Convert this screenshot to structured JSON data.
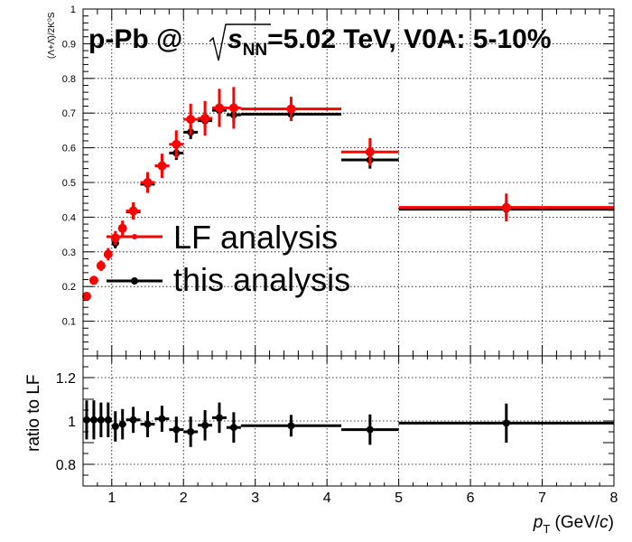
{
  "chart_data": [
    {
      "type": "scatter",
      "title_parts": [
        "p-Pb @",
        "s",
        "NN",
        "=5.02 TeV, V0A: 5-10%"
      ],
      "ylabel": "(Λ+Λ̄)/2K⁰S",
      "xlim": [
        0.6,
        8
      ],
      "ylim": [
        0,
        1
      ],
      "yticks": [
        "0.1",
        "0.2",
        "0.3",
        "0.4",
        "0.5",
        "0.6",
        "0.7",
        "0.8",
        "0.9",
        "1"
      ],
      "grid": true,
      "legend_position": "center-left",
      "series": [
        {
          "name": "LF analysis",
          "color": "#ff0000",
          "points": [
            {
              "x": 0.65,
              "xerr": 0.05,
              "y": 0.172,
              "yerr": 0.01
            },
            {
              "x": 0.75,
              "xerr": 0.05,
              "y": 0.218,
              "yerr": 0.012
            },
            {
              "x": 0.85,
              "xerr": 0.05,
              "y": 0.26,
              "yerr": 0.015
            },
            {
              "x": 0.95,
              "xerr": 0.05,
              "y": 0.293,
              "yerr": 0.018
            },
            {
              "x": 1.05,
              "xerr": 0.05,
              "y": 0.34,
              "yerr": 0.02
            },
            {
              "x": 1.15,
              "xerr": 0.05,
              "y": 0.368,
              "yerr": 0.022
            },
            {
              "x": 1.3,
              "xerr": 0.1,
              "y": 0.418,
              "yerr": 0.025
            },
            {
              "x": 1.5,
              "xerr": 0.1,
              "y": 0.5,
              "yerr": 0.03
            },
            {
              "x": 1.7,
              "xerr": 0.1,
              "y": 0.548,
              "yerr": 0.035
            },
            {
              "x": 1.9,
              "xerr": 0.1,
              "y": 0.61,
              "yerr": 0.04
            },
            {
              "x": 2.1,
              "xerr": 0.1,
              "y": 0.682,
              "yerr": 0.045
            },
            {
              "x": 2.3,
              "xerr": 0.1,
              "y": 0.685,
              "yerr": 0.05
            },
            {
              "x": 2.5,
              "xerr": 0.1,
              "y": 0.715,
              "yerr": 0.055
            },
            {
              "x": 2.7,
              "xerr": 0.1,
              "y": 0.715,
              "yerr": 0.06
            },
            {
              "x": 3.5,
              "xerr": 0.7,
              "y": 0.712,
              "yerr": 0.035
            },
            {
              "x": 4.6,
              "xerr": 0.4,
              "y": 0.588,
              "yerr": 0.04
            },
            {
              "x": 6.5,
              "xerr": 1.5,
              "y": 0.428,
              "yerr": 0.04
            }
          ]
        },
        {
          "name": "this analysis",
          "color": "#000000",
          "points": [
            {
              "x": 1.05,
              "xerr": 0.05,
              "y": 0.325,
              "yerr": 0.015
            },
            {
              "x": 1.3,
              "xerr": 0.1,
              "y": 0.415,
              "yerr": 0.02
            },
            {
              "x": 1.5,
              "xerr": 0.1,
              "y": 0.495,
              "yerr": 0.02
            },
            {
              "x": 1.7,
              "xerr": 0.1,
              "y": 0.548,
              "yerr": 0.02
            },
            {
              "x": 1.9,
              "xerr": 0.1,
              "y": 0.585,
              "yerr": 0.02
            },
            {
              "x": 2.1,
              "xerr": 0.1,
              "y": 0.645,
              "yerr": 0.02
            },
            {
              "x": 2.3,
              "xerr": 0.1,
              "y": 0.678,
              "yerr": 0.02
            },
            {
              "x": 2.5,
              "xerr": 0.1,
              "y": 0.708,
              "yerr": 0.02
            },
            {
              "x": 2.7,
              "xerr": 0.1,
              "y": 0.695,
              "yerr": 0.02
            },
            {
              "x": 3.5,
              "xerr": 0.7,
              "y": 0.697,
              "yerr": 0.02
            },
            {
              "x": 4.6,
              "xerr": 0.4,
              "y": 0.565,
              "yerr": 0.025
            },
            {
              "x": 6.5,
              "xerr": 1.5,
              "y": 0.423,
              "yerr": 0.025
            }
          ]
        }
      ]
    },
    {
      "type": "scatter",
      "ylabel": "ratio to LF",
      "xlabel_parts": [
        "p",
        "T",
        " (GeV/",
        "c",
        ")"
      ],
      "xlim": [
        0.6,
        8
      ],
      "ylim": [
        0.7,
        1.3
      ],
      "xticks": [
        "1",
        "2",
        "3",
        "4",
        "5",
        "6",
        "7",
        "8"
      ],
      "yticks": [
        "0.8",
        "1",
        "1.2"
      ],
      "grid": true,
      "series": [
        {
          "name": "ratio",
          "color": "#000000",
          "points": [
            {
              "x": 0.65,
              "xerr": 0.05,
              "y": 1.005,
              "yerr": 0.09
            },
            {
              "x": 0.75,
              "xerr": 0.05,
              "y": 1.005,
              "yerr": 0.09
            },
            {
              "x": 0.85,
              "xerr": 0.05,
              "y": 1.005,
              "yerr": 0.08
            },
            {
              "x": 0.95,
              "xerr": 0.05,
              "y": 1.005,
              "yerr": 0.08
            },
            {
              "x": 1.05,
              "xerr": 0.05,
              "y": 0.975,
              "yerr": 0.07
            },
            {
              "x": 1.15,
              "xerr": 0.05,
              "y": 0.985,
              "yerr": 0.07
            },
            {
              "x": 1.3,
              "xerr": 0.1,
              "y": 1.005,
              "yerr": 0.06
            },
            {
              "x": 1.5,
              "xerr": 0.1,
              "y": 0.985,
              "yerr": 0.06
            },
            {
              "x": 1.7,
              "xerr": 0.1,
              "y": 1.01,
              "yerr": 0.06
            },
            {
              "x": 1.9,
              "xerr": 0.1,
              "y": 0.96,
              "yerr": 0.06
            },
            {
              "x": 2.1,
              "xerr": 0.1,
              "y": 0.95,
              "yerr": 0.07
            },
            {
              "x": 2.3,
              "xerr": 0.1,
              "y": 0.98,
              "yerr": 0.07
            },
            {
              "x": 2.5,
              "xerr": 0.1,
              "y": 1.015,
              "yerr": 0.07
            },
            {
              "x": 2.7,
              "xerr": 0.1,
              "y": 0.97,
              "yerr": 0.07
            },
            {
              "x": 3.5,
              "xerr": 0.7,
              "y": 0.978,
              "yerr": 0.05
            },
            {
              "x": 4.6,
              "xerr": 0.4,
              "y": 0.96,
              "yerr": 0.07
            },
            {
              "x": 6.5,
              "xerr": 1.5,
              "y": 0.99,
              "yerr": 0.09
            }
          ]
        }
      ]
    }
  ]
}
